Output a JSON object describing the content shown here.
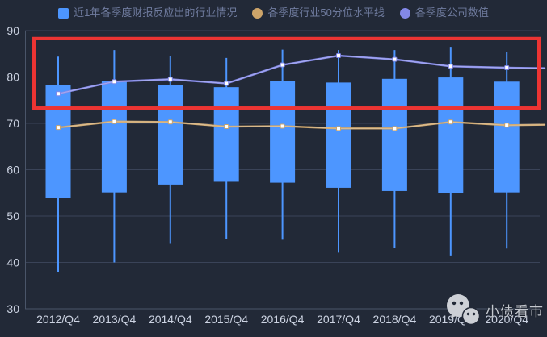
{
  "colors": {
    "background": "#222937",
    "gridline": "#3A4358",
    "axis": "#4A5569",
    "axis_label": "#CCD3E2",
    "legend_text": "#6F7B9E",
    "point_fill": "#FFFFFF",
    "watermark_icon": "#CDD0D6",
    "watermark_eye": "#222937"
  },
  "legend": {
    "items": [
      {
        "label": "近1年各季度财报反应出的行业情况",
        "marker": "square",
        "color": "#4D96FF"
      },
      {
        "label": "各季度行业50分位水平线",
        "marker": "circle",
        "color": "#CDA469"
      },
      {
        "label": "各季度公司数值",
        "marker": "circle",
        "color": "#8388E8"
      }
    ]
  },
  "watermark": {
    "text": "小债看市"
  },
  "chart_data": {
    "type": "boxplot",
    "title": "",
    "xlabel": "",
    "ylabel": "",
    "categories": [
      "2012/Q4",
      "2013/Q4",
      "2014/Q4",
      "2015/Q4",
      "2016/Q4",
      "2017/Q4",
      "2018/Q4",
      "2019/Q4",
      "2020/Q4"
    ],
    "ylim": [
      30,
      90
    ],
    "y_ticks": [
      90,
      80,
      70,
      60,
      50,
      40,
      30
    ],
    "grid": true,
    "legend_position": "top",
    "series": [
      {
        "name": "近1年各季度财报反应出的行业情况",
        "type": "box",
        "color": "#4D96FF",
        "box_top": [
          78.2,
          79.1,
          78.3,
          77.8,
          79.2,
          78.8,
          79.6,
          79.9,
          79.0
        ],
        "box_bottom": [
          53.9,
          55.1,
          56.8,
          57.4,
          57.2,
          56.1,
          55.4,
          54.9,
          55.1
        ],
        "whisker_high": [
          84.4,
          85.8,
          84.6,
          84.1,
          85.9,
          85.8,
          85.8,
          86.5,
          85.3
        ],
        "whisker_low": [
          38.0,
          40.0,
          44.0,
          45.0,
          44.9,
          42.1,
          43.1,
          41.5,
          43.0
        ]
      },
      {
        "name": "各季度行业50分位水平线",
        "type": "line",
        "color": "#CDA469",
        "values": [
          69.1,
          70.4,
          70.3,
          69.3,
          69.4,
          68.9,
          68.9,
          70.3,
          69.6
        ],
        "edge_right_value": 69.7
      },
      {
        "name": "各季度公司数值",
        "type": "line",
        "color": "#8388E8",
        "values": [
          76.4,
          79.0,
          79.5,
          78.6,
          82.6,
          84.6,
          83.8,
          82.3,
          82.0
        ],
        "edge_right_value": 81.9
      }
    ],
    "annotation": {
      "type": "rect",
      "color": "#EC3433",
      "y_top_value": 88.3,
      "y_bottom_value": 73.3
    }
  }
}
